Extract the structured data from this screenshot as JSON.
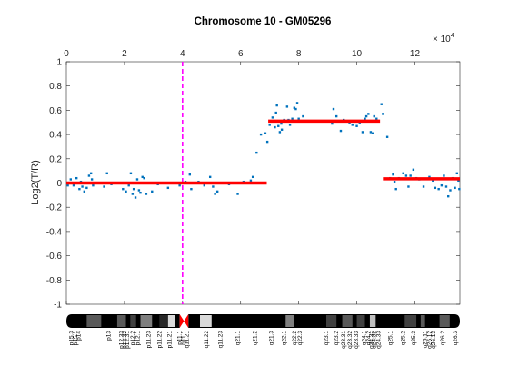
{
  "chart_data": {
    "type": "scatter",
    "title": "Chromosome 10 - GM05296",
    "xlabel": "",
    "ylabel": "Log2(T/R)",
    "x_axis_position": "top",
    "x_multiplier_label": "× 10",
    "x_multiplier_exponent": "4",
    "xlim": [
      0,
      13.55
    ],
    "ylim": [
      -1,
      1
    ],
    "x_ticks": [
      0,
      2,
      4,
      6,
      8,
      10,
      12
    ],
    "y_ticks": [
      -1,
      -0.8,
      -0.6,
      -0.4,
      -0.2,
      0,
      0.2,
      0.4,
      0.6,
      0.8,
      1
    ],
    "grid": false,
    "colors": {
      "points": "#0072BD",
      "segments": "#FF0000",
      "centromere_line": "#FF00FF",
      "centromere_marker": "#FF0000",
      "axes": "#262626"
    },
    "centromere_x": 4.0,
    "segments": [
      {
        "x_start": 0.0,
        "x_end": 6.9,
        "y": 0.0
      },
      {
        "x_start": 6.95,
        "x_end": 10.8,
        "y": 0.51
      },
      {
        "x_start": 10.9,
        "x_end": 13.55,
        "y": 0.035
      }
    ],
    "points": [
      [
        0.05,
        -0.02
      ],
      [
        0.15,
        0.03
      ],
      [
        0.25,
        -0.02
      ],
      [
        0.35,
        0.04
      ],
      [
        0.45,
        -0.05
      ],
      [
        0.5,
        0.01
      ],
      [
        0.55,
        -0.03
      ],
      [
        0.62,
        -0.07
      ],
      [
        0.7,
        -0.04
      ],
      [
        0.78,
        0.06
      ],
      [
        0.85,
        0.08
      ],
      [
        0.88,
        0.03
      ],
      [
        0.92,
        -0.02
      ],
      [
        1.2,
        0.0
      ],
      [
        1.3,
        -0.03
      ],
      [
        1.4,
        0.08
      ],
      [
        1.55,
        -0.01
      ],
      [
        1.7,
        0.0
      ],
      [
        1.95,
        -0.05
      ],
      [
        2.05,
        -0.07
      ],
      [
        2.15,
        -0.02
      ],
      [
        2.22,
        0.08
      ],
      [
        2.28,
        -0.09
      ],
      [
        2.32,
        -0.05
      ],
      [
        2.38,
        -0.12
      ],
      [
        2.44,
        0.03
      ],
      [
        2.5,
        -0.06
      ],
      [
        2.55,
        -0.08
      ],
      [
        2.62,
        0.05
      ],
      [
        2.68,
        0.04
      ],
      [
        2.75,
        -0.09
      ],
      [
        2.95,
        -0.07
      ],
      [
        3.15,
        -0.01
      ],
      [
        3.5,
        -0.04
      ],
      [
        3.9,
        -0.02
      ],
      [
        4.1,
        0.01
      ],
      [
        4.25,
        0.07
      ],
      [
        4.3,
        -0.05
      ],
      [
        4.55,
        0.01
      ],
      [
        4.75,
        -0.02
      ],
      [
        4.95,
        0.05
      ],
      [
        5.05,
        -0.03
      ],
      [
        5.12,
        -0.09
      ],
      [
        5.2,
        -0.07
      ],
      [
        5.4,
        0.0
      ],
      [
        5.6,
        -0.01
      ],
      [
        5.9,
        -0.09
      ],
      [
        6.1,
        0.01
      ],
      [
        6.2,
        0.0
      ],
      [
        6.35,
        0.02
      ],
      [
        6.42,
        0.05
      ],
      [
        6.55,
        0.25
      ],
      [
        6.7,
        0.4
      ],
      [
        6.85,
        0.41
      ],
      [
        6.92,
        0.34
      ],
      [
        7.0,
        0.48
      ],
      [
        7.1,
        0.54
      ],
      [
        7.18,
        0.46
      ],
      [
        7.22,
        0.58
      ],
      [
        7.25,
        0.64
      ],
      [
        7.3,
        0.47
      ],
      [
        7.35,
        0.42
      ],
      [
        7.4,
        0.49
      ],
      [
        7.42,
        0.44
      ],
      [
        7.5,
        0.52
      ],
      [
        7.6,
        0.63
      ],
      [
        7.65,
        0.52
      ],
      [
        7.7,
        0.48
      ],
      [
        7.78,
        0.53
      ],
      [
        7.85,
        0.62
      ],
      [
        7.9,
        0.61
      ],
      [
        7.95,
        0.66
      ],
      [
        8.0,
        0.53
      ],
      [
        8.15,
        0.55
      ],
      [
        8.35,
        0.51
      ],
      [
        9.15,
        0.49
      ],
      [
        9.2,
        0.61
      ],
      [
        9.3,
        0.55
      ],
      [
        9.45,
        0.43
      ],
      [
        9.55,
        0.52
      ],
      [
        9.75,
        0.5
      ],
      [
        9.85,
        0.48
      ],
      [
        10.0,
        0.47
      ],
      [
        10.1,
        0.5
      ],
      [
        10.2,
        0.42
      ],
      [
        10.28,
        0.53
      ],
      [
        10.33,
        0.55
      ],
      [
        10.4,
        0.57
      ],
      [
        10.48,
        0.42
      ],
      [
        10.55,
        0.41
      ],
      [
        10.6,
        0.55
      ],
      [
        10.68,
        0.53
      ],
      [
        10.85,
        0.65
      ],
      [
        10.9,
        0.57
      ],
      [
        11.05,
        0.38
      ],
      [
        11.15,
        0.04
      ],
      [
        11.25,
        0.07
      ],
      [
        11.3,
        0.01
      ],
      [
        11.35,
        -0.05
      ],
      [
        11.45,
        0.04
      ],
      [
        11.6,
        0.08
      ],
      [
        11.7,
        0.06
      ],
      [
        11.78,
        -0.03
      ],
      [
        11.85,
        0.06
      ],
      [
        11.95,
        0.11
      ],
      [
        12.05,
        0.04
      ],
      [
        12.15,
        0.03
      ],
      [
        12.3,
        -0.03
      ],
      [
        12.5,
        0.05
      ],
      [
        12.62,
        0.02
      ],
      [
        12.7,
        -0.04
      ],
      [
        12.82,
        -0.05
      ],
      [
        12.92,
        -0.02
      ],
      [
        13.0,
        0.06
      ],
      [
        13.08,
        -0.03
      ],
      [
        13.15,
        -0.11
      ],
      [
        13.22,
        -0.06
      ],
      [
        13.3,
        0.04
      ],
      [
        13.38,
        -0.04
      ],
      [
        13.45,
        0.08
      ],
      [
        13.5,
        0.02
      ],
      [
        13.53,
        -0.05
      ]
    ],
    "ideogram": {
      "bands": [
        {
          "start": 0.0,
          "end": 0.7,
          "shade": "#000000"
        },
        {
          "start": 0.7,
          "end": 1.2,
          "shade": "#595959"
        },
        {
          "start": 1.2,
          "end": 1.75,
          "shade": "#000000"
        },
        {
          "start": 1.75,
          "end": 2.05,
          "shade": "#595959"
        },
        {
          "start": 2.05,
          "end": 2.2,
          "shade": "#000000"
        },
        {
          "start": 2.2,
          "end": 2.4,
          "shade": "#404040"
        },
        {
          "start": 2.4,
          "end": 2.55,
          "shade": "#000000"
        },
        {
          "start": 2.55,
          "end": 2.95,
          "shade": "#7f7f7f"
        },
        {
          "start": 2.95,
          "end": 3.2,
          "shade": "#000000"
        },
        {
          "start": 3.2,
          "end": 3.5,
          "shade": "#262626"
        },
        {
          "start": 3.5,
          "end": 3.75,
          "shade": "#d9d9d9"
        },
        {
          "start": 3.75,
          "end": 3.9,
          "shade": "#000000"
        },
        {
          "start": 4.2,
          "end": 4.6,
          "shade": "#000000"
        },
        {
          "start": 4.6,
          "end": 5.0,
          "shade": "#d9d9d9"
        },
        {
          "start": 5.0,
          "end": 7.55,
          "shade": "#000000"
        },
        {
          "start": 7.55,
          "end": 7.85,
          "shade": "#7f7f7f"
        },
        {
          "start": 7.85,
          "end": 8.95,
          "shade": "#000000"
        },
        {
          "start": 8.95,
          "end": 9.3,
          "shade": "#404040"
        },
        {
          "start": 9.3,
          "end": 9.5,
          "shade": "#000000"
        },
        {
          "start": 9.5,
          "end": 9.85,
          "shade": "#595959"
        },
        {
          "start": 9.85,
          "end": 10.0,
          "shade": "#000000"
        },
        {
          "start": 10.0,
          "end": 10.28,
          "shade": "#404040"
        },
        {
          "start": 10.28,
          "end": 10.45,
          "shade": "#000000"
        },
        {
          "start": 10.45,
          "end": 10.65,
          "shade": "#bfbfbf"
        },
        {
          "start": 10.65,
          "end": 11.65,
          "shade": "#000000"
        },
        {
          "start": 11.65,
          "end": 12.05,
          "shade": "#404040"
        },
        {
          "start": 12.05,
          "end": 12.2,
          "shade": "#000000"
        },
        {
          "start": 12.2,
          "end": 12.35,
          "shade": "#595959"
        },
        {
          "start": 12.35,
          "end": 12.85,
          "shade": "#000000"
        },
        {
          "start": 12.85,
          "end": 13.2,
          "shade": "#595959"
        },
        {
          "start": 13.2,
          "end": 13.55,
          "shade": "#000000"
        }
      ],
      "band_labels": [
        {
          "x": 0.17,
          "text": "p15.3"
        },
        {
          "x": 0.31,
          "text": "p15.1"
        },
        {
          "x": 0.43,
          "text": "p14"
        },
        {
          "x": 1.45,
          "text": "p13"
        },
        {
          "x": 1.9,
          "text": "p12.33"
        },
        {
          "x": 2.0,
          "text": "p12.32"
        },
        {
          "x": 2.1,
          "text": "p12.31"
        },
        {
          "x": 2.28,
          "text": "p12.2"
        },
        {
          "x": 2.45,
          "text": "p12.1"
        },
        {
          "x": 2.83,
          "text": "p11.23"
        },
        {
          "x": 3.2,
          "text": "p11.22"
        },
        {
          "x": 3.55,
          "text": "p11.21"
        },
        {
          "x": 3.9,
          "text": "p11.1"
        },
        {
          "x": 4.03,
          "text": "q11.1"
        },
        {
          "x": 4.15,
          "text": "q11.21"
        },
        {
          "x": 4.82,
          "text": "q11.22"
        },
        {
          "x": 5.3,
          "text": "q11.23"
        },
        {
          "x": 5.9,
          "text": "q21.1"
        },
        {
          "x": 6.5,
          "text": "q21.2"
        },
        {
          "x": 7.05,
          "text": "q21.3"
        },
        {
          "x": 7.5,
          "text": "q22.1"
        },
        {
          "x": 7.85,
          "text": "q22.2"
        },
        {
          "x": 8.05,
          "text": "q22.3"
        },
        {
          "x": 8.95,
          "text": "q23.1"
        },
        {
          "x": 9.3,
          "text": "q23.2"
        },
        {
          "x": 9.55,
          "text": "q23.31"
        },
        {
          "x": 9.77,
          "text": "q23.32"
        },
        {
          "x": 9.98,
          "text": "q23.33"
        },
        {
          "x": 10.25,
          "text": "q24.1"
        },
        {
          "x": 10.4,
          "text": "q24.2"
        },
        {
          "x": 10.5,
          "text": "q24.31"
        },
        {
          "x": 10.6,
          "text": "q24.32"
        },
        {
          "x": 10.75,
          "text": "q24.33"
        },
        {
          "x": 11.15,
          "text": "q25.1"
        },
        {
          "x": 11.6,
          "text": "q25.2"
        },
        {
          "x": 11.95,
          "text": "q25.3"
        },
        {
          "x": 12.35,
          "text": "q26.11"
        },
        {
          "x": 12.5,
          "text": "q26.12"
        },
        {
          "x": 12.65,
          "text": "q26.13"
        },
        {
          "x": 12.95,
          "text": "q26.2"
        },
        {
          "x": 13.4,
          "text": "q26.3"
        }
      ]
    }
  }
}
